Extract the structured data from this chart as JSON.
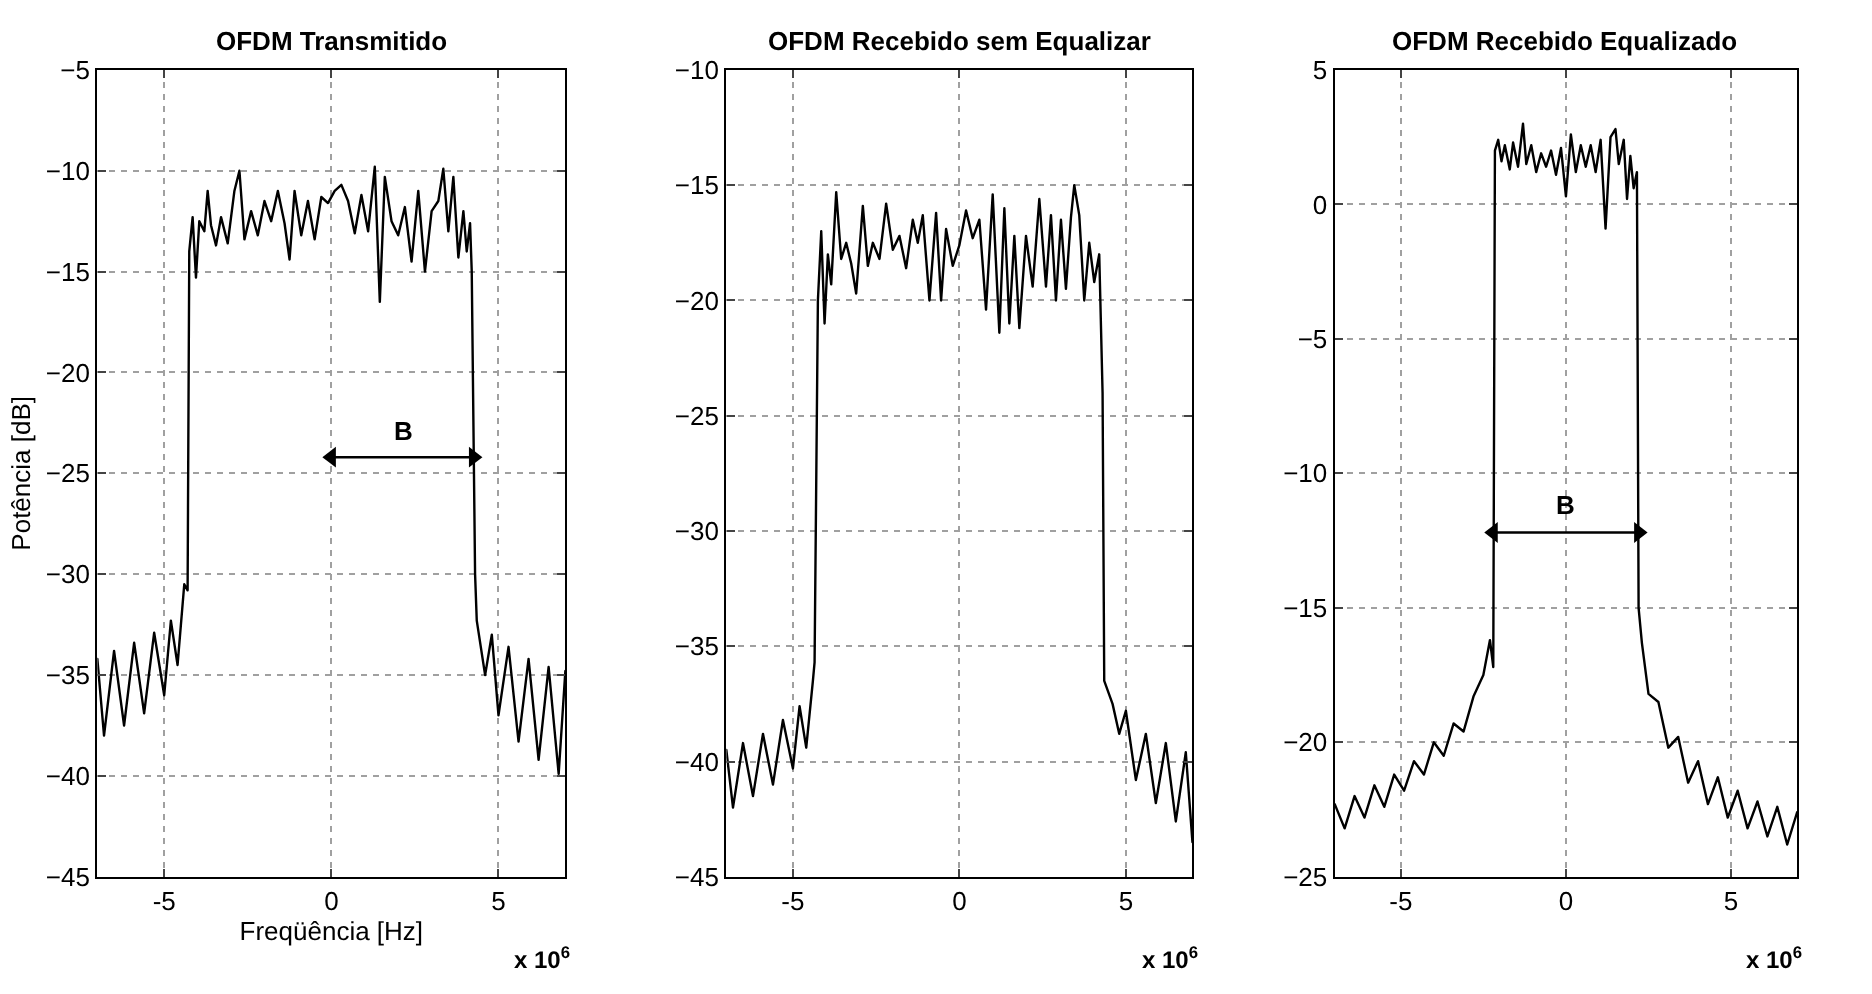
{
  "chart_data": [
    {
      "type": "line",
      "title": "OFDM Transmitido",
      "xlabel": "Freqüência [Hz]",
      "ylabel": "Potência [dB]",
      "xlim": [
        -7,
        7
      ],
      "xticks": [
        -5,
        0,
        5
      ],
      "ylim": [
        -45,
        -5
      ],
      "yticks": [
        -45,
        -40,
        -35,
        -30,
        -25,
        -20,
        -15,
        -10,
        -5
      ],
      "grid": true,
      "annotations": [
        "x 10$^{6}$"
      ],
      "series": [
        {
          "color": "#000000",
          "x": [
            -7,
            -6.8,
            -6.5,
            -6.2,
            -5.9,
            -5.6,
            -5.3,
            -5.0,
            -4.8,
            -4.6,
            -4.4,
            -4.3,
            -4.25,
            -4.15,
            -4.05,
            -3.95,
            -3.8,
            -3.7,
            -3.6,
            -3.45,
            -3.3,
            -3.1,
            -2.9,
            -2.75,
            -2.6,
            -2.4,
            -2.2,
            -2.0,
            -1.8,
            -1.6,
            -1.4,
            -1.25,
            -1.1,
            -0.9,
            -0.7,
            -0.5,
            -0.3,
            -0.1,
            0.1,
            0.3,
            0.5,
            0.7,
            0.9,
            1.1,
            1.3,
            1.45,
            1.6,
            1.8,
            2.0,
            2.2,
            2.4,
            2.6,
            2.8,
            3.0,
            3.2,
            3.35,
            3.5,
            3.65,
            3.8,
            3.95,
            4.05,
            4.15,
            4.2,
            4.3,
            4.35,
            4.6,
            4.8,
            5.0,
            5.3,
            5.6,
            5.9,
            6.2,
            6.5,
            6.8,
            7
          ],
          "values": [
            -34.2,
            -38,
            -33.8,
            -37.5,
            -33.4,
            -36.9,
            -32.9,
            -36,
            -32.3,
            -34.5,
            -30.5,
            -30.8,
            -14,
            -12.3,
            -15.3,
            -12.5,
            -13,
            -11,
            -12.7,
            -13.7,
            -12.3,
            -13.6,
            -11,
            -10,
            -13.4,
            -12,
            -13.2,
            -11.5,
            -12.5,
            -11,
            -12.6,
            -14.4,
            -11,
            -13.2,
            -11.5,
            -13.4,
            -11.3,
            -11.6,
            -11,
            -10.7,
            -11.5,
            -13.1,
            -11.2,
            -13,
            -9.8,
            -16.5,
            -10.3,
            -12.5,
            -13.2,
            -11.8,
            -14.5,
            -11,
            -15,
            -12,
            -11.5,
            -9.9,
            -13,
            -10.3,
            -14.3,
            -12,
            -14,
            -12.6,
            -15,
            -30,
            -32.3,
            -35,
            -33,
            -37,
            -33.6,
            -38.3,
            -34.2,
            -39.2,
            -34.6,
            -39.9,
            -34.8
          ]
        },
        {
          "name": "B",
          "color": "#000000",
          "marker": "triangle",
          "x": [
            0,
            4.25
          ],
          "values": [
            -24.2,
            -24.2
          ]
        }
      ]
    },
    {
      "type": "line",
      "title": "OFDM Recebido sem Equalizar",
      "xlim": [
        -7,
        7
      ],
      "xticks": [
        -5,
        0,
        5
      ],
      "ylim": [
        -45,
        -10
      ],
      "yticks": [
        -45,
        -40,
        -35,
        -30,
        -25,
        -20,
        -15,
        -10
      ],
      "grid": true,
      "annotations": [
        "x 10$^{6}$"
      ],
      "series": [
        {
          "color": "#000000",
          "x": [
            -7,
            -6.8,
            -6.5,
            -6.2,
            -5.9,
            -5.6,
            -5.3,
            -5.0,
            -4.8,
            -4.6,
            -4.4,
            -4.35,
            -4.25,
            -4.15,
            -4.05,
            -3.95,
            -3.85,
            -3.7,
            -3.55,
            -3.4,
            -3.25,
            -3.1,
            -2.9,
            -2.75,
            -2.6,
            -2.4,
            -2.2,
            -2.0,
            -1.8,
            -1.6,
            -1.4,
            -1.25,
            -1.1,
            -0.9,
            -0.7,
            -0.55,
            -0.4,
            -0.2,
            0,
            0.2,
            0.4,
            0.6,
            0.8,
            1.0,
            1.2,
            1.35,
            1.5,
            1.65,
            1.8,
            2.0,
            2.2,
            2.4,
            2.6,
            2.75,
            2.9,
            3.05,
            3.2,
            3.35,
            3.45,
            3.6,
            3.75,
            3.9,
            4.05,
            4.2,
            4.3,
            4.35,
            4.6,
            4.8,
            5.0,
            5.3,
            5.6,
            5.9,
            6.2,
            6.5,
            6.8,
            7
          ],
          "values": [
            -39.5,
            -42,
            -39.2,
            -41.5,
            -38.8,
            -41,
            -38.2,
            -40.3,
            -37.6,
            -39.4,
            -36.5,
            -35.7,
            -20,
            -17,
            -21,
            -18,
            -19.3,
            -15.3,
            -18.2,
            -17.5,
            -18.4,
            -19.7,
            -15.9,
            -18.5,
            -17.5,
            -18.2,
            -15.8,
            -17.8,
            -17.2,
            -18.6,
            -16.5,
            -17.5,
            -16.3,
            -20,
            -16.2,
            -20,
            -16.9,
            -18.5,
            -17.6,
            -16.1,
            -17.3,
            -16.5,
            -20.4,
            -15.4,
            -21.4,
            -16,
            -21,
            -17.2,
            -21.2,
            -17.2,
            -19.4,
            -15.6,
            -19.4,
            -16.3,
            -20,
            -16.5,
            -19.5,
            -16.4,
            -15,
            -16.3,
            -20,
            -17.5,
            -19.2,
            -18,
            -24,
            -36.5,
            -37.5,
            -38.8,
            -37.8,
            -40.8,
            -38.8,
            -41.8,
            -39.2,
            -42.6,
            -39.6,
            -43.5
          ]
        }
      ]
    },
    {
      "type": "line",
      "title": "OFDM Recebido Equalizado",
      "xlim": [
        -7,
        7
      ],
      "xticks": [
        -5,
        0,
        5
      ],
      "ylim": [
        -25,
        5
      ],
      "yticks": [
        -25,
        -20,
        -15,
        -10,
        -5,
        0,
        5
      ],
      "grid": true,
      "annotations": [
        "x 10$^{6}$"
      ],
      "series": [
        {
          "color": "#000000",
          "x": [
            -7,
            -6.7,
            -6.4,
            -6.1,
            -5.8,
            -5.5,
            -5.2,
            -4.9,
            -4.6,
            -4.3,
            -4.0,
            -3.7,
            -3.4,
            -3.1,
            -2.8,
            -2.5,
            -2.3,
            -2.2,
            -2.15,
            -2.05,
            -1.95,
            -1.85,
            -1.7,
            -1.6,
            -1.45,
            -1.3,
            -1.2,
            -1.05,
            -0.9,
            -0.75,
            -0.6,
            -0.45,
            -0.3,
            -0.15,
            0,
            0.15,
            0.3,
            0.45,
            0.6,
            0.75,
            0.9,
            1.05,
            1.2,
            1.35,
            1.5,
            1.6,
            1.75,
            1.85,
            1.95,
            2.05,
            2.15,
            2.2,
            2.3,
            2.5,
            2.8,
            3.1,
            3.4,
            3.7,
            4.0,
            4.3,
            4.6,
            4.9,
            5.2,
            5.5,
            5.8,
            6.1,
            6.4,
            6.7,
            7
          ],
          "values": [
            -22.3,
            -23.2,
            -22,
            -22.8,
            -21.6,
            -22.4,
            -21.2,
            -21.8,
            -20.7,
            -21.2,
            -20,
            -20.5,
            -19.3,
            -19.6,
            -18.3,
            -17.5,
            -16.2,
            -17.2,
            2,
            2.4,
            1.6,
            2.2,
            1.3,
            2.3,
            1.4,
            3,
            1.5,
            2.2,
            1.2,
            1.9,
            1.4,
            2,
            1.1,
            2.1,
            0.3,
            2.6,
            1.2,
            2.2,
            1.4,
            2.2,
            1.2,
            2.4,
            -0.9,
            2.5,
            2.8,
            1.5,
            2.4,
            0.2,
            1.8,
            0.6,
            1.2,
            -15,
            -16.3,
            -18.2,
            -18.5,
            -20.2,
            -19.8,
            -21.5,
            -20.7,
            -22.3,
            -21.3,
            -22.8,
            -21.8,
            -23.2,
            -22.2,
            -23.5,
            -22.4,
            -23.8,
            -22.6
          ]
        },
        {
          "name": "B",
          "color": "#000000",
          "marker": "triangle",
          "x": [
            -2.2,
            2.2
          ],
          "values": [
            -12.2,
            -12.2
          ]
        }
      ]
    }
  ]
}
